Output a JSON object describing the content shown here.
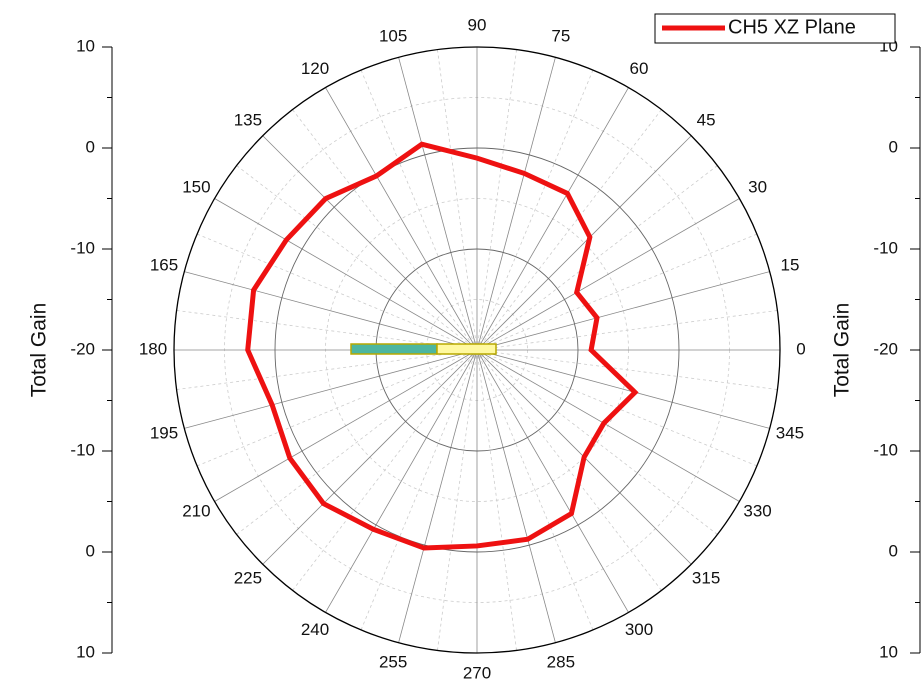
{
  "chart_data": {
    "type": "polar",
    "ylabel": "Total Gain",
    "x": [
      0,
      15,
      30,
      45,
      60,
      75,
      90,
      105,
      120,
      135,
      150,
      165,
      180,
      195,
      210,
      225,
      240,
      255,
      270,
      285,
      300,
      315,
      330,
      345
    ],
    "xticks": [
      0,
      15,
      30,
      45,
      60,
      75,
      90,
      105,
      120,
      135,
      150,
      165,
      180,
      195,
      210,
      225,
      240,
      255,
      270,
      285,
      300,
      315,
      330,
      345
    ],
    "ylim": [
      -20,
      10
    ],
    "yticks": [
      -20,
      -10,
      0,
      10
    ],
    "grid": true,
    "legend": "upper right",
    "series": [
      {
        "name": "CH5 XZ Plane",
        "color": "#ee1111",
        "values": [
          -8.7,
          -7.7,
          -8.6,
          -4.2,
          -2.1,
          -1.9,
          -1.0,
          1.1,
          -0.1,
          1.2,
          1.8,
          2.9,
          2.7,
          1.0,
          1.4,
          1.5,
          0.5,
          0.3,
          -0.6,
          -0.6,
          -1.3,
          -5.0,
          -5.5,
          -3.8
        ]
      }
    ]
  }
}
